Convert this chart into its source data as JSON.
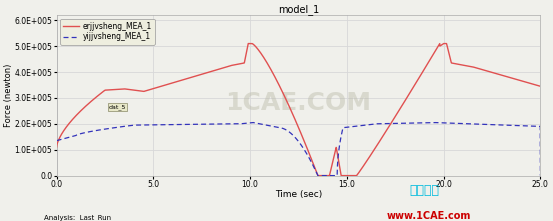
{
  "title": "model_1",
  "xlabel": "Time (sec)",
  "ylabel": "Force (newton)",
  "xlim": [
    0.0,
    25.0
  ],
  "ylim": [
    0.0,
    620000.0
  ],
  "yticks": [
    0.0,
    100000.0,
    200000.0,
    300000.0,
    400000.0,
    500000.0,
    600000.0
  ],
  "ytick_labels": [
    "0.0",
    "1.0E+005",
    "2.0E+005",
    "3.0E+005",
    "4.0E+005",
    "5.0E+005",
    "6.0E+005"
  ],
  "xticks": [
    0.0,
    5.0,
    10.0,
    15.0,
    20.0,
    25.0
  ],
  "xtick_labels": [
    "0.0",
    "5.0",
    "10.0",
    "15.0",
    "20.0",
    "25.0"
  ],
  "legend1_label": "erjjvsheng_MEA_1",
  "legend2_label": "yijjvsheng_MEA_1",
  "line1_color": "#e05050",
  "line2_color": "#3333bb",
  "bg_color": "#f0f0eb",
  "grid_color": "#d8d8d8",
  "annotation_text": "Analysis:  Last_Run",
  "watermark_text1": "仿真在线",
  "watermark_text2": "www.1CAE.com",
  "watermark_color1": "#00bbdd",
  "watermark_color2": "#cc0000",
  "center_watermark": "1CAE.COM",
  "center_wm_color": "#bbbbaa"
}
